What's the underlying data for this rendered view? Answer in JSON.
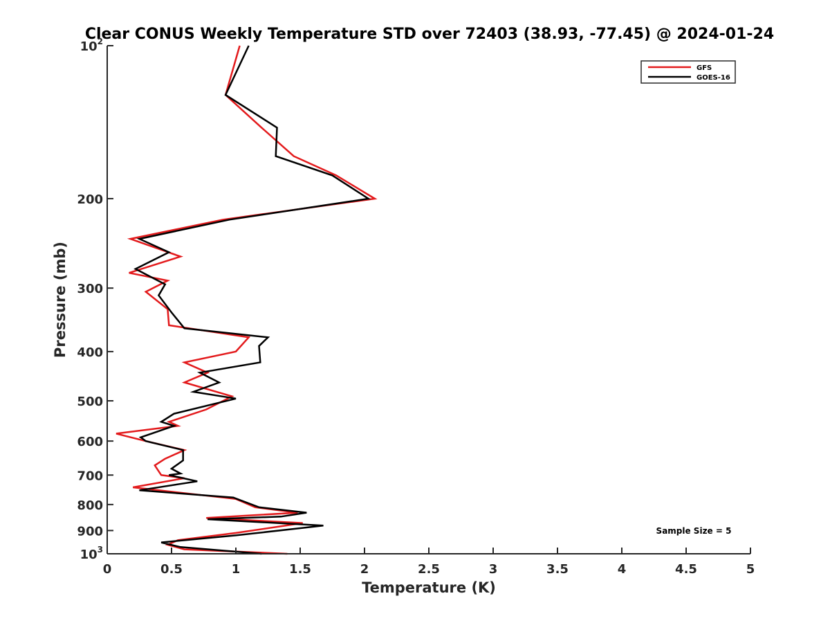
{
  "chart_data": {
    "type": "line",
    "title": "Clear CONUS Weekly Temperature STD over 72403 (38.93, -77.45) @ 2024-01-24",
    "xlabel": "Temperature (K)",
    "ylabel": "Pressure (mb)",
    "xlim": [
      0,
      5
    ],
    "ylim": [
      1000,
      100
    ],
    "yscale": "log",
    "y_reversed": true,
    "grid": false,
    "legend_position": "top-right",
    "x_ticks": [
      0,
      0.5,
      1,
      1.5,
      2,
      2.5,
      3,
      3.5,
      4,
      4.5,
      5
    ],
    "x_tick_labels": [
      "0",
      "0.5",
      "1",
      "1.5",
      "2",
      "2.5",
      "3",
      "3.5",
      "4",
      "4.5",
      "5"
    ],
    "y_ticks": [
      100,
      200,
      300,
      400,
      500,
      600,
      700,
      800,
      900,
      1000
    ],
    "y_tick_labels": [
      {
        "base": "10",
        "sup": "2"
      },
      {
        "base": "200",
        "sup": ""
      },
      {
        "base": "300",
        "sup": ""
      },
      {
        "base": "400",
        "sup": ""
      },
      {
        "base": "500",
        "sup": ""
      },
      {
        "base": "600",
        "sup": ""
      },
      {
        "base": "700",
        "sup": ""
      },
      {
        "base": "800",
        "sup": ""
      },
      {
        "base": "900",
        "sup": ""
      },
      {
        "base": "10",
        "sup": "3"
      }
    ],
    "annotation": "Sample Size = 5",
    "series": [
      {
        "name": "GFS",
        "color": "#e31a1c",
        "x": [
          1.03,
          0.92,
          1.2,
          1.45,
          1.78,
          2.08,
          0.9,
          0.18,
          0.57,
          0.17,
          0.47,
          0.3,
          0.47,
          0.48,
          1.1,
          1.0,
          0.6,
          0.78,
          0.6,
          0.97,
          0.77,
          0.48,
          0.55,
          0.07,
          0.3,
          0.6,
          0.45,
          0.37,
          0.42,
          0.6,
          0.2,
          1.0,
          1.15,
          1.48,
          0.77,
          1.52,
          1.0,
          0.55,
          0.47,
          0.6,
          1.4
        ],
        "y": [
          100,
          125,
          145,
          165,
          180,
          200,
          220,
          240,
          260,
          280,
          290,
          305,
          330,
          355,
          375,
          400,
          420,
          440,
          460,
          490,
          520,
          550,
          560,
          580,
          600,
          625,
          650,
          670,
          700,
          710,
          740,
          780,
          810,
          830,
          850,
          870,
          910,
          940,
          960,
          980,
          1000
        ]
      },
      {
        "name": "GOES-16",
        "color": "#000000",
        "x": [
          1.1,
          0.92,
          1.32,
          1.31,
          1.75,
          2.03,
          0.95,
          0.25,
          0.48,
          0.22,
          0.45,
          0.4,
          0.5,
          0.6,
          1.25,
          1.18,
          1.19,
          0.72,
          0.87,
          0.67,
          1.0,
          0.52,
          0.42,
          0.52,
          0.26,
          0.3,
          0.59,
          0.59,
          0.5,
          0.57,
          0.48,
          0.7,
          0.25,
          0.98,
          1.18,
          1.55,
          1.35,
          0.78,
          1.68,
          1.0,
          0.42,
          0.57,
          1.2
        ],
        "y": [
          100,
          125,
          145,
          165,
          180,
          200,
          220,
          240,
          255,
          275,
          295,
          310,
          335,
          360,
          375,
          390,
          420,
          440,
          460,
          480,
          495,
          530,
          550,
          560,
          590,
          600,
          625,
          655,
          680,
          695,
          700,
          720,
          750,
          775,
          810,
          830,
          845,
          855,
          880,
          920,
          950,
          970,
          1000
        ]
      }
    ]
  }
}
